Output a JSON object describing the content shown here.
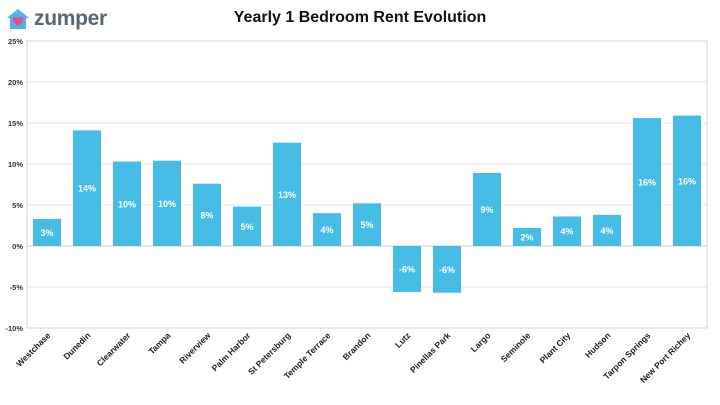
{
  "brand": {
    "name": "zumper",
    "icon": "house-icon",
    "icon_color": "#4db3e8",
    "heart_color": "#ef4b7c"
  },
  "chart_data": {
    "type": "bar",
    "title": "Yearly 1 Bedroom Rent Evolution",
    "xlabel": "",
    "ylabel": "",
    "ylim": [
      -10,
      25
    ],
    "yticks": [
      -10,
      -5,
      0,
      5,
      10,
      15,
      20,
      25
    ],
    "ytick_labels": [
      "-10%",
      "-5%",
      "0%",
      "5%",
      "10%",
      "15%",
      "20%",
      "25%"
    ],
    "grid": true,
    "legend": "none",
    "bar_color": "#45bce5",
    "categories": [
      "Westchase",
      "Dunedin",
      "Clearwater",
      "Tampa",
      "Riverview",
      "Palm Harbor",
      "St Petersburg",
      "Temple Terrace",
      "Brandon",
      "Lutz",
      "Pinellas Park",
      "Largo",
      "Seminole",
      "Plant City",
      "Hudson",
      "Tarpon Springs",
      "New Port Richey"
    ],
    "values": [
      3.3,
      14.1,
      10.3,
      10.4,
      7.6,
      4.8,
      12.6,
      4.0,
      5.2,
      -5.6,
      -5.7,
      8.9,
      2.2,
      3.6,
      3.8,
      15.6,
      15.9
    ],
    "data_labels": [
      "3%",
      "14%",
      "10%",
      "10%",
      "8%",
      "5%",
      "13%",
      "4%",
      "5%",
      "-6%",
      "-6%",
      "9%",
      "2%",
      "4%",
      "4%",
      "16%",
      "16%"
    ]
  }
}
